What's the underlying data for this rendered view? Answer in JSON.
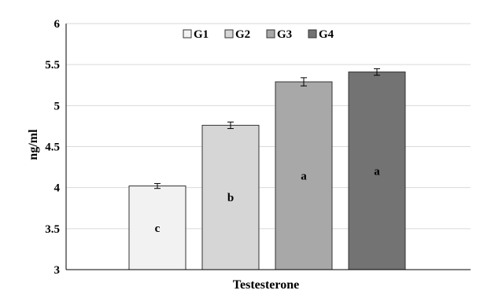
{
  "chart_data": {
    "type": "bar",
    "title": "",
    "xlabel": "Testesterone",
    "ylabel": "ng/ml",
    "ylim": [
      3,
      6
    ],
    "yticks": [
      "3",
      "3.5",
      "4",
      "4.5",
      "5",
      "5.5",
      "6"
    ],
    "grid": true,
    "legend_position": "top-center",
    "categories": [
      "Testesterone"
    ],
    "series": [
      {
        "name": "G1",
        "values": [
          4.02
        ],
        "error": [
          0.03
        ],
        "label": "c",
        "color": "#f2f2f2"
      },
      {
        "name": "G2",
        "values": [
          4.76
        ],
        "error": [
          0.04
        ],
        "label": "b",
        "color": "#d6d6d6"
      },
      {
        "name": "G3",
        "values": [
          5.29
        ],
        "error": [
          0.05
        ],
        "label": "a",
        "color": "#a8a8a8"
      },
      {
        "name": "G4",
        "values": [
          5.41
        ],
        "error": [
          0.04
        ],
        "label": "a",
        "color": "#737373"
      }
    ]
  }
}
